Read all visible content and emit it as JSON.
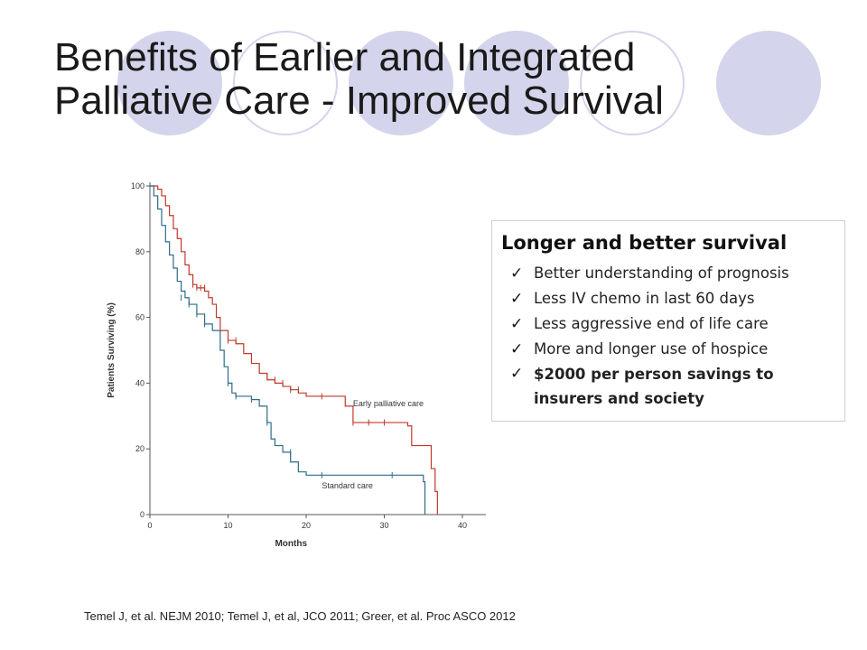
{
  "slide": {
    "title_line1": "Benefits of Earlier and Integrated",
    "title_line2": "Palliative Care - Improved Survival",
    "source": "Temel J, et al. NEJM 2010; Temel J, et al, JCO 2011; Greer, et al. Proc ASCO 2012",
    "accent_color": "#d4d4ec"
  },
  "summary": {
    "heading": "Longer and better survival",
    "items": [
      {
        "text": "Better understanding of prognosis",
        "bold": false
      },
      {
        "text": "Less IV chemo in last 60 days",
        "bold": false
      },
      {
        "text": "Less aggressive end of life care",
        "bold": false
      },
      {
        "text": "More and longer use of hospice",
        "bold": false
      },
      {
        "text": "$2000 per person savings to insurers and society",
        "bold": true
      }
    ]
  },
  "chart_data": {
    "type": "line",
    "title": "",
    "xlabel": "Months",
    "ylabel": "Patients Surviving (%)",
    "xlim": [
      0,
      43
    ],
    "ylim": [
      0,
      100
    ],
    "xticks": [
      0,
      10,
      20,
      30,
      40
    ],
    "yticks": [
      0,
      20,
      40,
      60,
      80,
      100
    ],
    "grid": false,
    "step": true,
    "series": [
      {
        "name": "Early palliative care",
        "color": "#c0392b",
        "points": [
          [
            0,
            100
          ],
          [
            1,
            99
          ],
          [
            1.5,
            97
          ],
          [
            2,
            94
          ],
          [
            2.5,
            91
          ],
          [
            3,
            87
          ],
          [
            3.5,
            84
          ],
          [
            4,
            80
          ],
          [
            4.5,
            76
          ],
          [
            5,
            73
          ],
          [
            5.5,
            70
          ],
          [
            6,
            69
          ],
          [
            7,
            68
          ],
          [
            7.5,
            66
          ],
          [
            8,
            64
          ],
          [
            8.5,
            60
          ],
          [
            9,
            56
          ],
          [
            10,
            53
          ],
          [
            11,
            52
          ],
          [
            12,
            49
          ],
          [
            13,
            46
          ],
          [
            14,
            43
          ],
          [
            15,
            41
          ],
          [
            16,
            40
          ],
          [
            17,
            39
          ],
          [
            18,
            38
          ],
          [
            19,
            37
          ],
          [
            20,
            36
          ],
          [
            25,
            33
          ],
          [
            26,
            28
          ],
          [
            33,
            27
          ],
          [
            33.5,
            21
          ],
          [
            36,
            14
          ],
          [
            36.5,
            7
          ],
          [
            36.8,
            0
          ]
        ],
        "censored": [
          [
            5.5,
            70
          ],
          [
            6,
            69
          ],
          [
            6.5,
            69
          ],
          [
            7,
            69
          ],
          [
            10,
            53
          ],
          [
            11,
            53
          ],
          [
            14,
            44
          ],
          [
            15,
            42
          ],
          [
            16,
            41
          ],
          [
            17,
            40
          ],
          [
            18,
            38
          ],
          [
            19,
            38
          ],
          [
            22,
            36
          ],
          [
            26,
            28
          ],
          [
            28,
            28
          ],
          [
            30,
            28
          ]
        ],
        "label": {
          "text": "Early palliative care",
          "x": 26,
          "y": 33
        }
      },
      {
        "name": "Standard care",
        "color": "#2e6b8a",
        "points": [
          [
            0,
            100
          ],
          [
            0.5,
            97
          ],
          [
            1,
            93
          ],
          [
            1.5,
            88
          ],
          [
            2,
            83
          ],
          [
            2.5,
            79
          ],
          [
            3,
            75
          ],
          [
            3.5,
            71
          ],
          [
            4,
            68
          ],
          [
            4.5,
            66
          ],
          [
            5,
            64
          ],
          [
            6,
            61
          ],
          [
            7,
            58
          ],
          [
            8,
            56
          ],
          [
            9,
            50
          ],
          [
            9.5,
            45
          ],
          [
            10,
            40
          ],
          [
            10.5,
            37
          ],
          [
            11,
            36
          ],
          [
            13,
            35
          ],
          [
            14,
            33
          ],
          [
            15,
            28
          ],
          [
            15.5,
            23
          ],
          [
            16,
            21
          ],
          [
            17,
            19
          ],
          [
            18,
            16
          ],
          [
            19,
            13
          ],
          [
            20,
            12
          ],
          [
            35,
            10
          ],
          [
            35.2,
            0
          ]
        ],
        "censored": [
          [
            4,
            66
          ],
          [
            5,
            64
          ],
          [
            6,
            61
          ],
          [
            7,
            58
          ],
          [
            10,
            40
          ],
          [
            11,
            36
          ],
          [
            13,
            35
          ],
          [
            15,
            28
          ],
          [
            18,
            19
          ],
          [
            22,
            12
          ],
          [
            31,
            12
          ]
        ],
        "label": {
          "text": "Standard care",
          "x": 22,
          "y": 8
        }
      }
    ]
  }
}
